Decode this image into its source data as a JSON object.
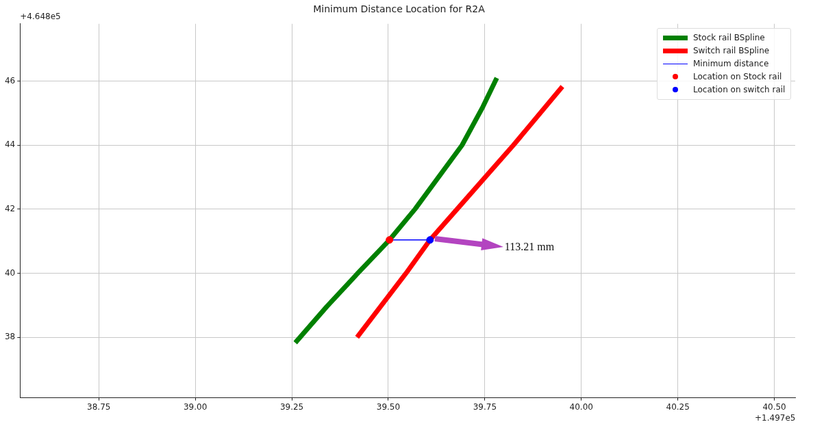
{
  "chart_data": {
    "type": "line",
    "title": "Minimum Distance Location for R2A",
    "xlim": [
      38.546,
      40.554
    ],
    "ylim": [
      36.11,
      47.79
    ],
    "xticks": [
      38.75,
      {
        "value": 39,
        "label": "39.00"
      },
      39.25,
      {
        "value": 39.5,
        "label": "39.50"
      },
      39.75,
      {
        "value": 40,
        "label": "40.00"
      },
      40.25,
      {
        "value": 40.5,
        "label": "40.50"
      }
    ],
    "yticks": [
      38,
      40,
      42,
      44,
      46
    ],
    "grid": true,
    "legend": "top right",
    "line_style": "solid",
    "annotations": [
      "+4.648e5",
      "+1.497e5",
      "113.21 mm"
    ],
    "series": [
      {
        "name": "Stock rail BSpline",
        "color": "#008000",
        "marker": "none",
        "x": [
          39.259,
          39.34,
          39.421,
          39.503,
          39.569,
          39.691,
          39.745,
          39.781
        ],
        "values": [
          37.83,
          38.95,
          40.0,
          41.04,
          42.0,
          44.0,
          45.2,
          46.1
        ]
      },
      {
        "name": "Switch rail BSpline",
        "color": "#ff0000",
        "marker": "none",
        "x": [
          39.419,
          39.546,
          39.608,
          39.678,
          39.824,
          39.951
        ],
        "values": [
          38.0,
          40.0,
          41.04,
          42.0,
          44.0,
          45.83
        ]
      },
      {
        "name": "Minimum distance",
        "color": "#0000ff",
        "marker": "none",
        "x": [
          39.503,
          39.608
        ],
        "values": [
          41.04,
          41.04
        ]
      },
      {
        "name": "Location on Stock rail",
        "type": "scatter",
        "marker": "circle",
        "color": "#ff0000",
        "x": [
          39.503
        ],
        "values": [
          41.04
        ]
      },
      {
        "name": "Location on switch rail",
        "type": "scatter",
        "marker": "circle",
        "color": "#0000ff",
        "x": [
          39.608
        ],
        "values": [
          41.04
        ]
      }
    ]
  }
}
